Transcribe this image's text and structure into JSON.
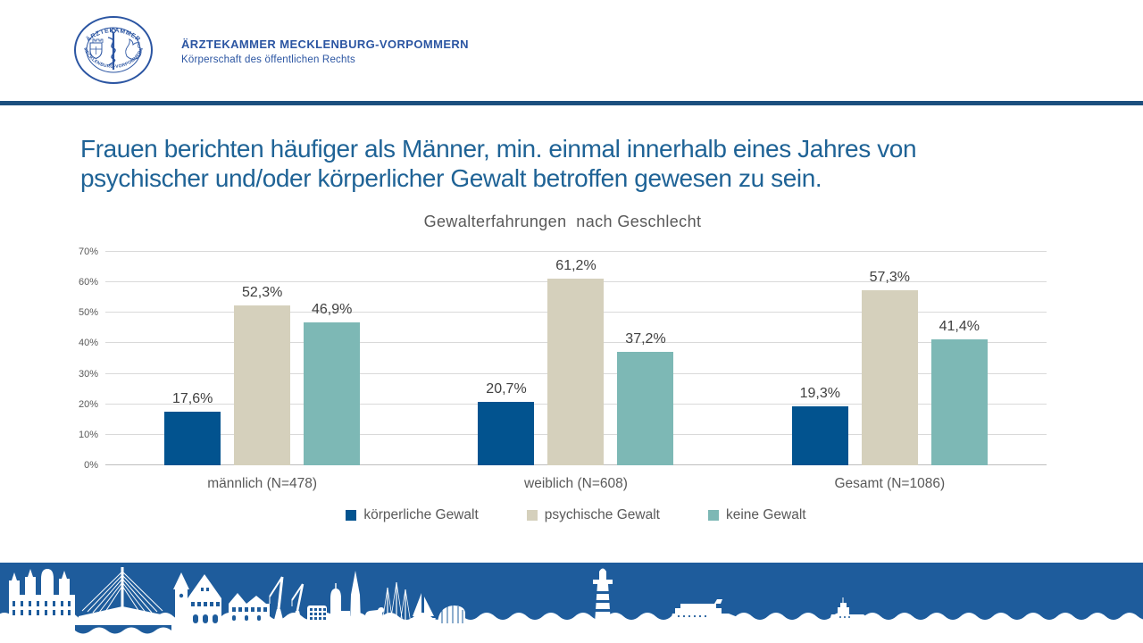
{
  "header": {
    "org_name": "ÄRZTEKAMMER MECKLENBURG-VORPOMMERN",
    "org_subtitle": "Körperschaft des öffentlichen Rechts",
    "seal": {
      "top_text": "ÄRZTEKAMMER",
      "bottom_text": "MECKLENBURG-VORPOMMERN"
    }
  },
  "title": {
    "line1": "Frauen berichten häufiger als Männer, min. einmal innerhalb eines Jahres von",
    "line2": "psychischer und/oder körperlicher Gewalt betroffen gewesen zu sein."
  },
  "chart_data": {
    "type": "bar",
    "title": "Gewalterfahrungen  nach Geschlecht",
    "categories": [
      "männlich (N=478)",
      "weiblich (N=608)",
      "Gesamt (N=1086)"
    ],
    "series": [
      {
        "name": "körperliche Gewalt",
        "color": "#02538F",
        "values": [
          17.6,
          20.7,
          19.3
        ],
        "labels": [
          "17,6%",
          "20,7%",
          "19,3%"
        ]
      },
      {
        "name": "psychische Gewalt",
        "color": "#D5D0BC",
        "values": [
          52.3,
          61.2,
          57.3
        ],
        "labels": [
          "52,3%",
          "61,2%",
          "57,3%"
        ]
      },
      {
        "name": "keine Gewalt",
        "color": "#7DB8B5",
        "values": [
          46.9,
          37.2,
          41.4
        ],
        "labels": [
          "46,9%",
          "37,2%",
          "41,4%"
        ]
      }
    ],
    "y_axis": {
      "ticks": [
        "0%",
        "10%",
        "20%",
        "30%",
        "40%",
        "50%",
        "60%",
        "70%"
      ],
      "min": 0,
      "max": 70,
      "grid": true
    },
    "xlabel": "",
    "ylabel": "",
    "legend_position": "bottom"
  },
  "colors": {
    "header_blue": "#2B55A2",
    "title_blue": "#1F6396",
    "divider_navy": "#1C4F7E",
    "footer_blue": "#1E5C9C",
    "chart_text_gray": "#595959",
    "value_label_gray": "#404040",
    "gridline_gray": "#D9D9D9",
    "axis_gray": "#BFBFBF"
  }
}
